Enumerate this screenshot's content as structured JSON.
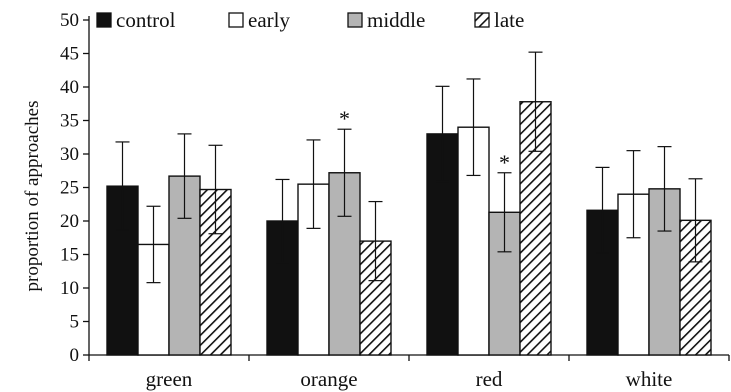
{
  "chart_data": {
    "type": "bar",
    "title": "",
    "xlabel": "",
    "ylabel": "proportion of approaches",
    "ylim": [
      0,
      50
    ],
    "yticks": [
      0,
      5,
      10,
      15,
      20,
      25,
      30,
      35,
      40,
      45,
      50
    ],
    "grid": false,
    "legend_position": "top",
    "categories": [
      "green",
      "orange",
      "red",
      "white"
    ],
    "series": [
      {
        "name": "control",
        "fill": "black",
        "color": "#111111",
        "values": [
          25.2,
          20.0,
          33.0,
          21.6
        ],
        "errors": [
          6.6,
          6.2,
          7.1,
          6.4
        ]
      },
      {
        "name": "early",
        "fill": "white",
        "color": "#ffffff",
        "values": [
          16.5,
          25.5,
          34.0,
          24.0
        ],
        "errors": [
          5.7,
          6.6,
          7.2,
          6.5
        ]
      },
      {
        "name": "middle",
        "fill": "gray",
        "color": "#b4b4b4",
        "values": [
          26.7,
          27.2,
          21.3,
          24.8
        ],
        "errors": [
          6.3,
          6.5,
          5.9,
          6.3
        ]
      },
      {
        "name": "late",
        "fill": "hatched",
        "color": "#111111",
        "values": [
          24.7,
          17.0,
          37.8,
          20.1
        ],
        "errors": [
          6.6,
          5.9,
          7.4,
          6.2
        ]
      }
    ],
    "annotations": [
      {
        "category": "orange",
        "series": "middle",
        "text": "*"
      },
      {
        "category": "red",
        "series": "middle",
        "text": "*"
      }
    ]
  }
}
